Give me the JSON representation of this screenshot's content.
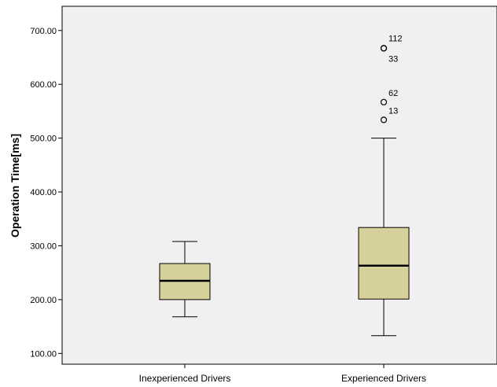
{
  "chart_data": {
    "type": "boxplot",
    "ylabel": "Operation Time[ms]",
    "ylim": [
      80,
      745
    ],
    "yticks": [
      "100.00",
      "200.00",
      "300.00",
      "400.00",
      "500.00",
      "600.00",
      "700.00"
    ],
    "categories": [
      "Inexperienced Drivers",
      "Experienced Drivers"
    ],
    "boxes": [
      {
        "min": 168,
        "q1": 200,
        "median": 235,
        "q3": 267,
        "max": 308,
        "outliers": []
      },
      {
        "min": 133,
        "q1": 201,
        "median": 263,
        "q3": 334,
        "max": 500,
        "outliers": [
          {
            "value": 667,
            "label": "112"
          },
          {
            "value": 667,
            "label": "33"
          },
          {
            "value": 567,
            "label": "62"
          },
          {
            "value": 534,
            "label": "13"
          }
        ]
      }
    ],
    "colors": {
      "box_fill": "#d6d19b",
      "plot_bg": "#f0f0f0",
      "stroke": "#000000"
    },
    "grid": false
  }
}
